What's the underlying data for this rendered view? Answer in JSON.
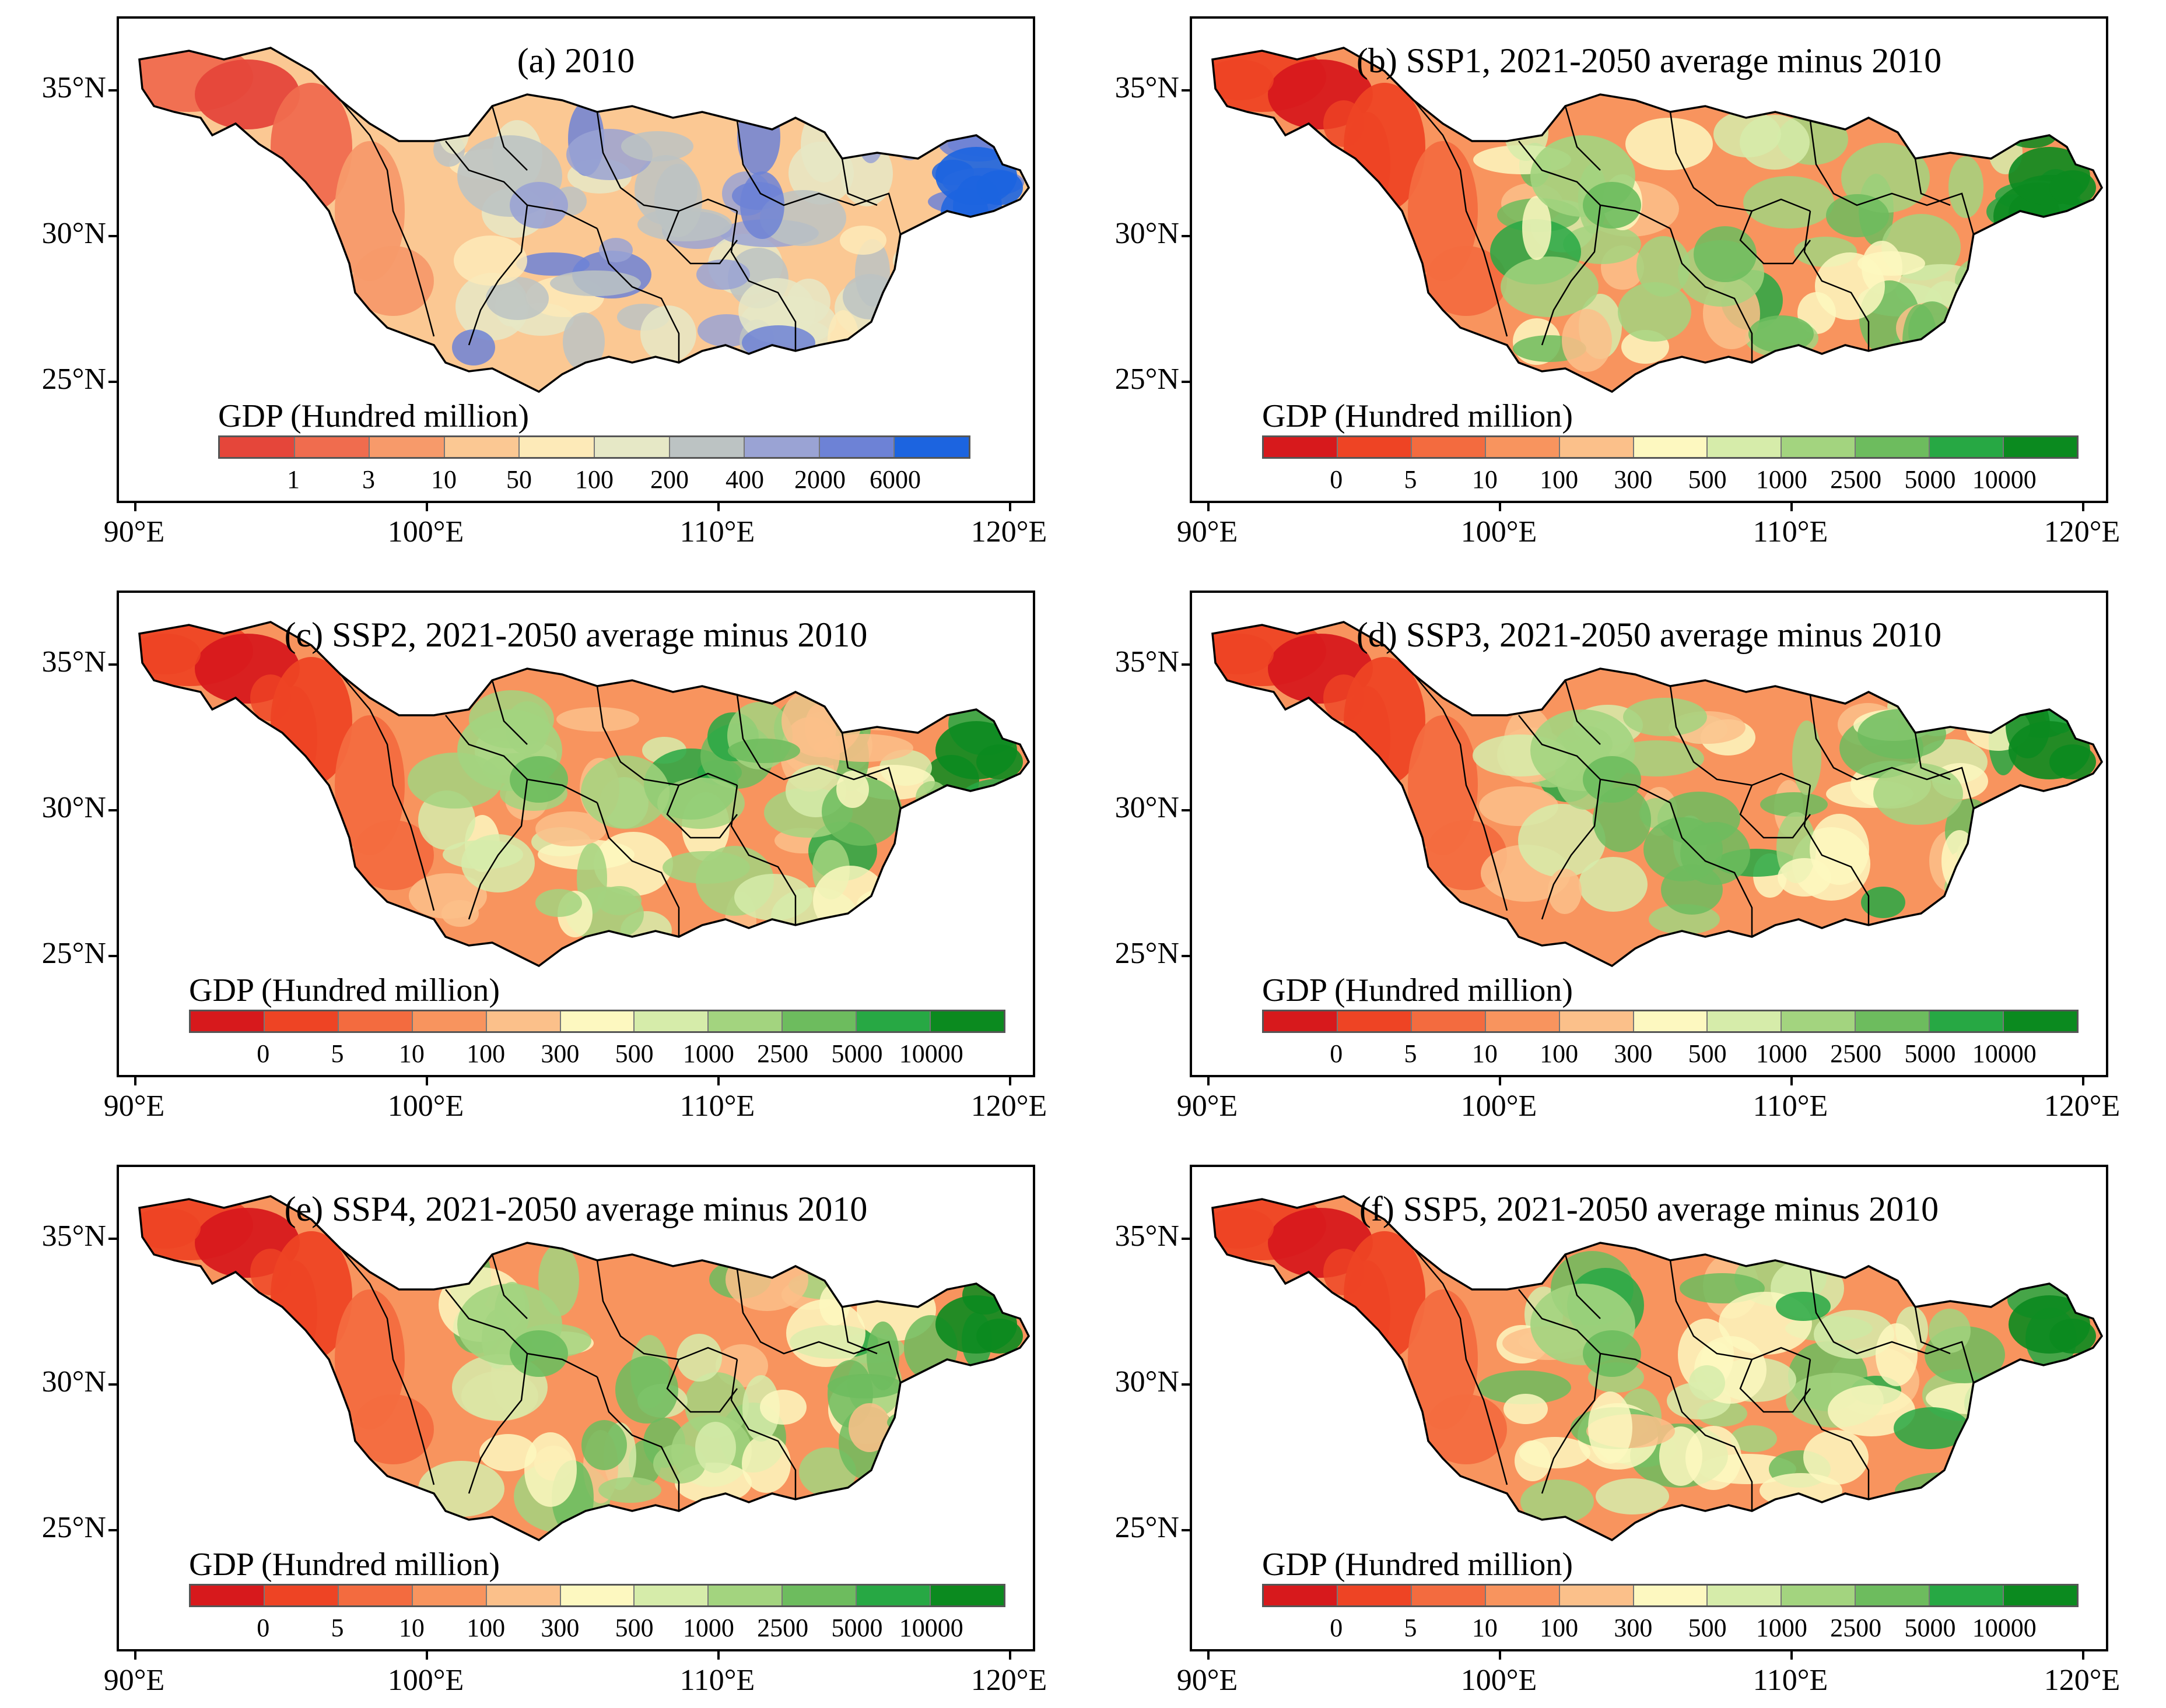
{
  "figure": {
    "axis_labels": {
      "lat": [
        "35°N",
        "30°N",
        "25°N"
      ],
      "lon": [
        "90°E",
        "100°E",
        "110°E",
        "120°E"
      ]
    },
    "legend_title": "GDP (Hundred million)",
    "legend_2010": {
      "ticks": [
        "1",
        "3",
        "10",
        "50",
        "100",
        "200",
        "400",
        "2000",
        "6000"
      ],
      "colors": [
        "#e5463a",
        "#f06c4e",
        "#f79a6a",
        "#fbc893",
        "#fdeab8",
        "#e6e8c6",
        "#bcc3c3",
        "#9aa3d4",
        "#6d82d6",
        "#1c64e0"
      ]
    },
    "legend_change": {
      "ticks": [
        "0",
        "5",
        "10",
        "100",
        "300",
        "500",
        "1000",
        "2500",
        "5000",
        "10000"
      ],
      "colors": [
        "#d7191c",
        "#ee4424",
        "#f36b3f",
        "#f8945e",
        "#fbc08a",
        "#fdf8c0",
        "#d6ecaa",
        "#a3d47f",
        "#6dbc5e",
        "#27a844",
        "#0b8a1f"
      ]
    }
  },
  "panels": [
    {
      "title": "(a) 2010",
      "legend": "legend_2010"
    },
    {
      "title": "(b) SSP1, 2021-2050 average minus 2010",
      "legend": "legend_change"
    },
    {
      "title": "(c) SSP2, 2021-2050 average minus 2010",
      "legend": "legend_change"
    },
    {
      "title": "(d) SSP3, 2021-2050 average minus 2010",
      "legend": "legend_change"
    },
    {
      "title": "(e) SSP4, 2021-2050 average minus 2010",
      "legend": "legend_change"
    },
    {
      "title": "(f) SSP5, 2021-2050 average minus 2010",
      "legend": "legend_change"
    }
  ]
}
